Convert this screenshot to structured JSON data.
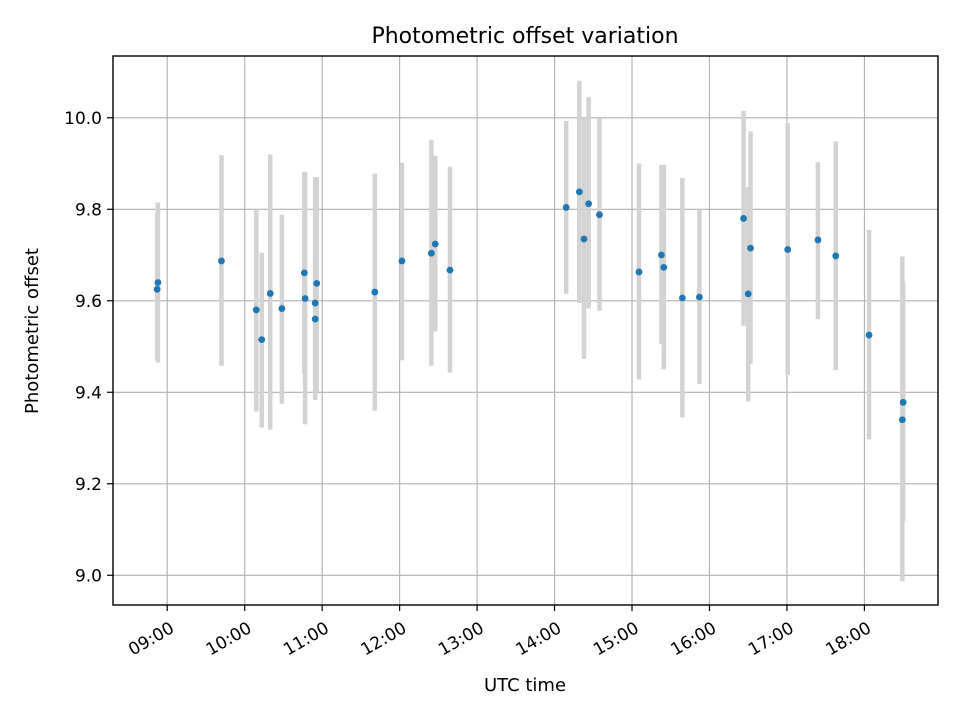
{
  "chart_data": {
    "type": "scatter",
    "title": "Photometric offset variation",
    "xlabel": "UTC time",
    "ylabel": "Photometric offset",
    "x_unit": "hour of day (UTC)",
    "xlim": [
      8.3,
      18.95
    ],
    "ylim": [
      8.935,
      10.135
    ],
    "x_ticks": [
      {
        "value": 9,
        "label": "09:00"
      },
      {
        "value": 10,
        "label": "10:00"
      },
      {
        "value": 11,
        "label": "11:00"
      },
      {
        "value": 12,
        "label": "12:00"
      },
      {
        "value": 13,
        "label": "13:00"
      },
      {
        "value": 14,
        "label": "14:00"
      },
      {
        "value": 15,
        "label": "15:00"
      },
      {
        "value": 16,
        "label": "16:00"
      },
      {
        "value": 17,
        "label": "17:00"
      },
      {
        "value": 18,
        "label": "18:00"
      }
    ],
    "y_ticks": [
      {
        "value": 9.0,
        "label": "9.0"
      },
      {
        "value": 9.2,
        "label": "9.2"
      },
      {
        "value": 9.4,
        "label": "9.4"
      },
      {
        "value": 9.6,
        "label": "9.6"
      },
      {
        "value": 9.8,
        "label": "9.8"
      },
      {
        "value": 10.0,
        "label": "10.0"
      }
    ],
    "grid": true,
    "colors": {
      "point": "#1f77b4",
      "errorbar": "#d3d3d3",
      "grid": "#b0b0b0"
    },
    "points": [
      {
        "x": 8.88,
        "y": 9.64,
        "lo": 9.465,
        "hi": 9.815
      },
      {
        "x": 8.87,
        "y": 9.625,
        "lo": 9.47,
        "hi": 9.79
      },
      {
        "x": 9.7,
        "y": 9.687,
        "lo": 9.458,
        "hi": 9.918
      },
      {
        "x": 10.15,
        "y": 9.58,
        "lo": 9.358,
        "hi": 9.8
      },
      {
        "x": 10.22,
        "y": 9.515,
        "lo": 9.323,
        "hi": 9.705
      },
      {
        "x": 10.33,
        "y": 9.616,
        "lo": 9.318,
        "hi": 9.92
      },
      {
        "x": 10.48,
        "y": 9.583,
        "lo": 9.375,
        "hi": 9.788
      },
      {
        "x": 10.77,
        "y": 9.661,
        "lo": 9.44,
        "hi": 9.882
      },
      {
        "x": 10.78,
        "y": 9.605,
        "lo": 9.33,
        "hi": 9.88
      },
      {
        "x": 10.91,
        "y": 9.595,
        "lo": 9.383,
        "hi": 9.87
      },
      {
        "x": 10.91,
        "y": 9.56,
        "lo": 9.415,
        "hi": 9.7
      },
      {
        "x": 10.93,
        "y": 9.638,
        "lo": 9.4,
        "hi": 9.87
      },
      {
        "x": 11.68,
        "y": 9.619,
        "lo": 9.36,
        "hi": 9.878
      },
      {
        "x": 12.03,
        "y": 9.687,
        "lo": 9.47,
        "hi": 9.902
      },
      {
        "x": 12.41,
        "y": 9.704,
        "lo": 9.458,
        "hi": 9.952
      },
      {
        "x": 12.46,
        "y": 9.724,
        "lo": 9.533,
        "hi": 9.917
      },
      {
        "x": 12.65,
        "y": 9.667,
        "lo": 9.443,
        "hi": 9.893
      },
      {
        "x": 14.15,
        "y": 9.804,
        "lo": 9.615,
        "hi": 9.993
      },
      {
        "x": 14.32,
        "y": 9.838,
        "lo": 9.595,
        "hi": 10.081
      },
      {
        "x": 14.38,
        "y": 9.735,
        "lo": 9.473,
        "hi": 9.998
      },
      {
        "x": 14.44,
        "y": 9.812,
        "lo": 9.583,
        "hi": 10.045
      },
      {
        "x": 14.58,
        "y": 9.788,
        "lo": 9.578,
        "hi": 9.998
      },
      {
        "x": 15.09,
        "y": 9.663,
        "lo": 9.428,
        "hi": 9.9
      },
      {
        "x": 15.38,
        "y": 9.7,
        "lo": 9.505,
        "hi": 9.897
      },
      {
        "x": 15.41,
        "y": 9.673,
        "lo": 9.45,
        "hi": 9.897
      },
      {
        "x": 15.65,
        "y": 9.606,
        "lo": 9.345,
        "hi": 9.868
      },
      {
        "x": 15.87,
        "y": 9.608,
        "lo": 9.418,
        "hi": 9.8
      },
      {
        "x": 16.44,
        "y": 9.78,
        "lo": 9.545,
        "hi": 10.015
      },
      {
        "x": 16.5,
        "y": 9.615,
        "lo": 9.38,
        "hi": 9.848
      },
      {
        "x": 16.53,
        "y": 9.715,
        "lo": 9.463,
        "hi": 9.97
      },
      {
        "x": 17.01,
        "y": 9.712,
        "lo": 9.438,
        "hi": 9.988
      },
      {
        "x": 17.4,
        "y": 9.733,
        "lo": 9.56,
        "hi": 9.903
      },
      {
        "x": 17.63,
        "y": 9.698,
        "lo": 9.448,
        "hi": 9.948
      },
      {
        "x": 18.06,
        "y": 9.525,
        "lo": 9.297,
        "hi": 9.755
      },
      {
        "x": 18.5,
        "y": 9.378,
        "lo": 9.118,
        "hi": 9.643
      },
      {
        "x": 18.49,
        "y": 9.34,
        "lo": 8.987,
        "hi": 9.697
      }
    ]
  }
}
